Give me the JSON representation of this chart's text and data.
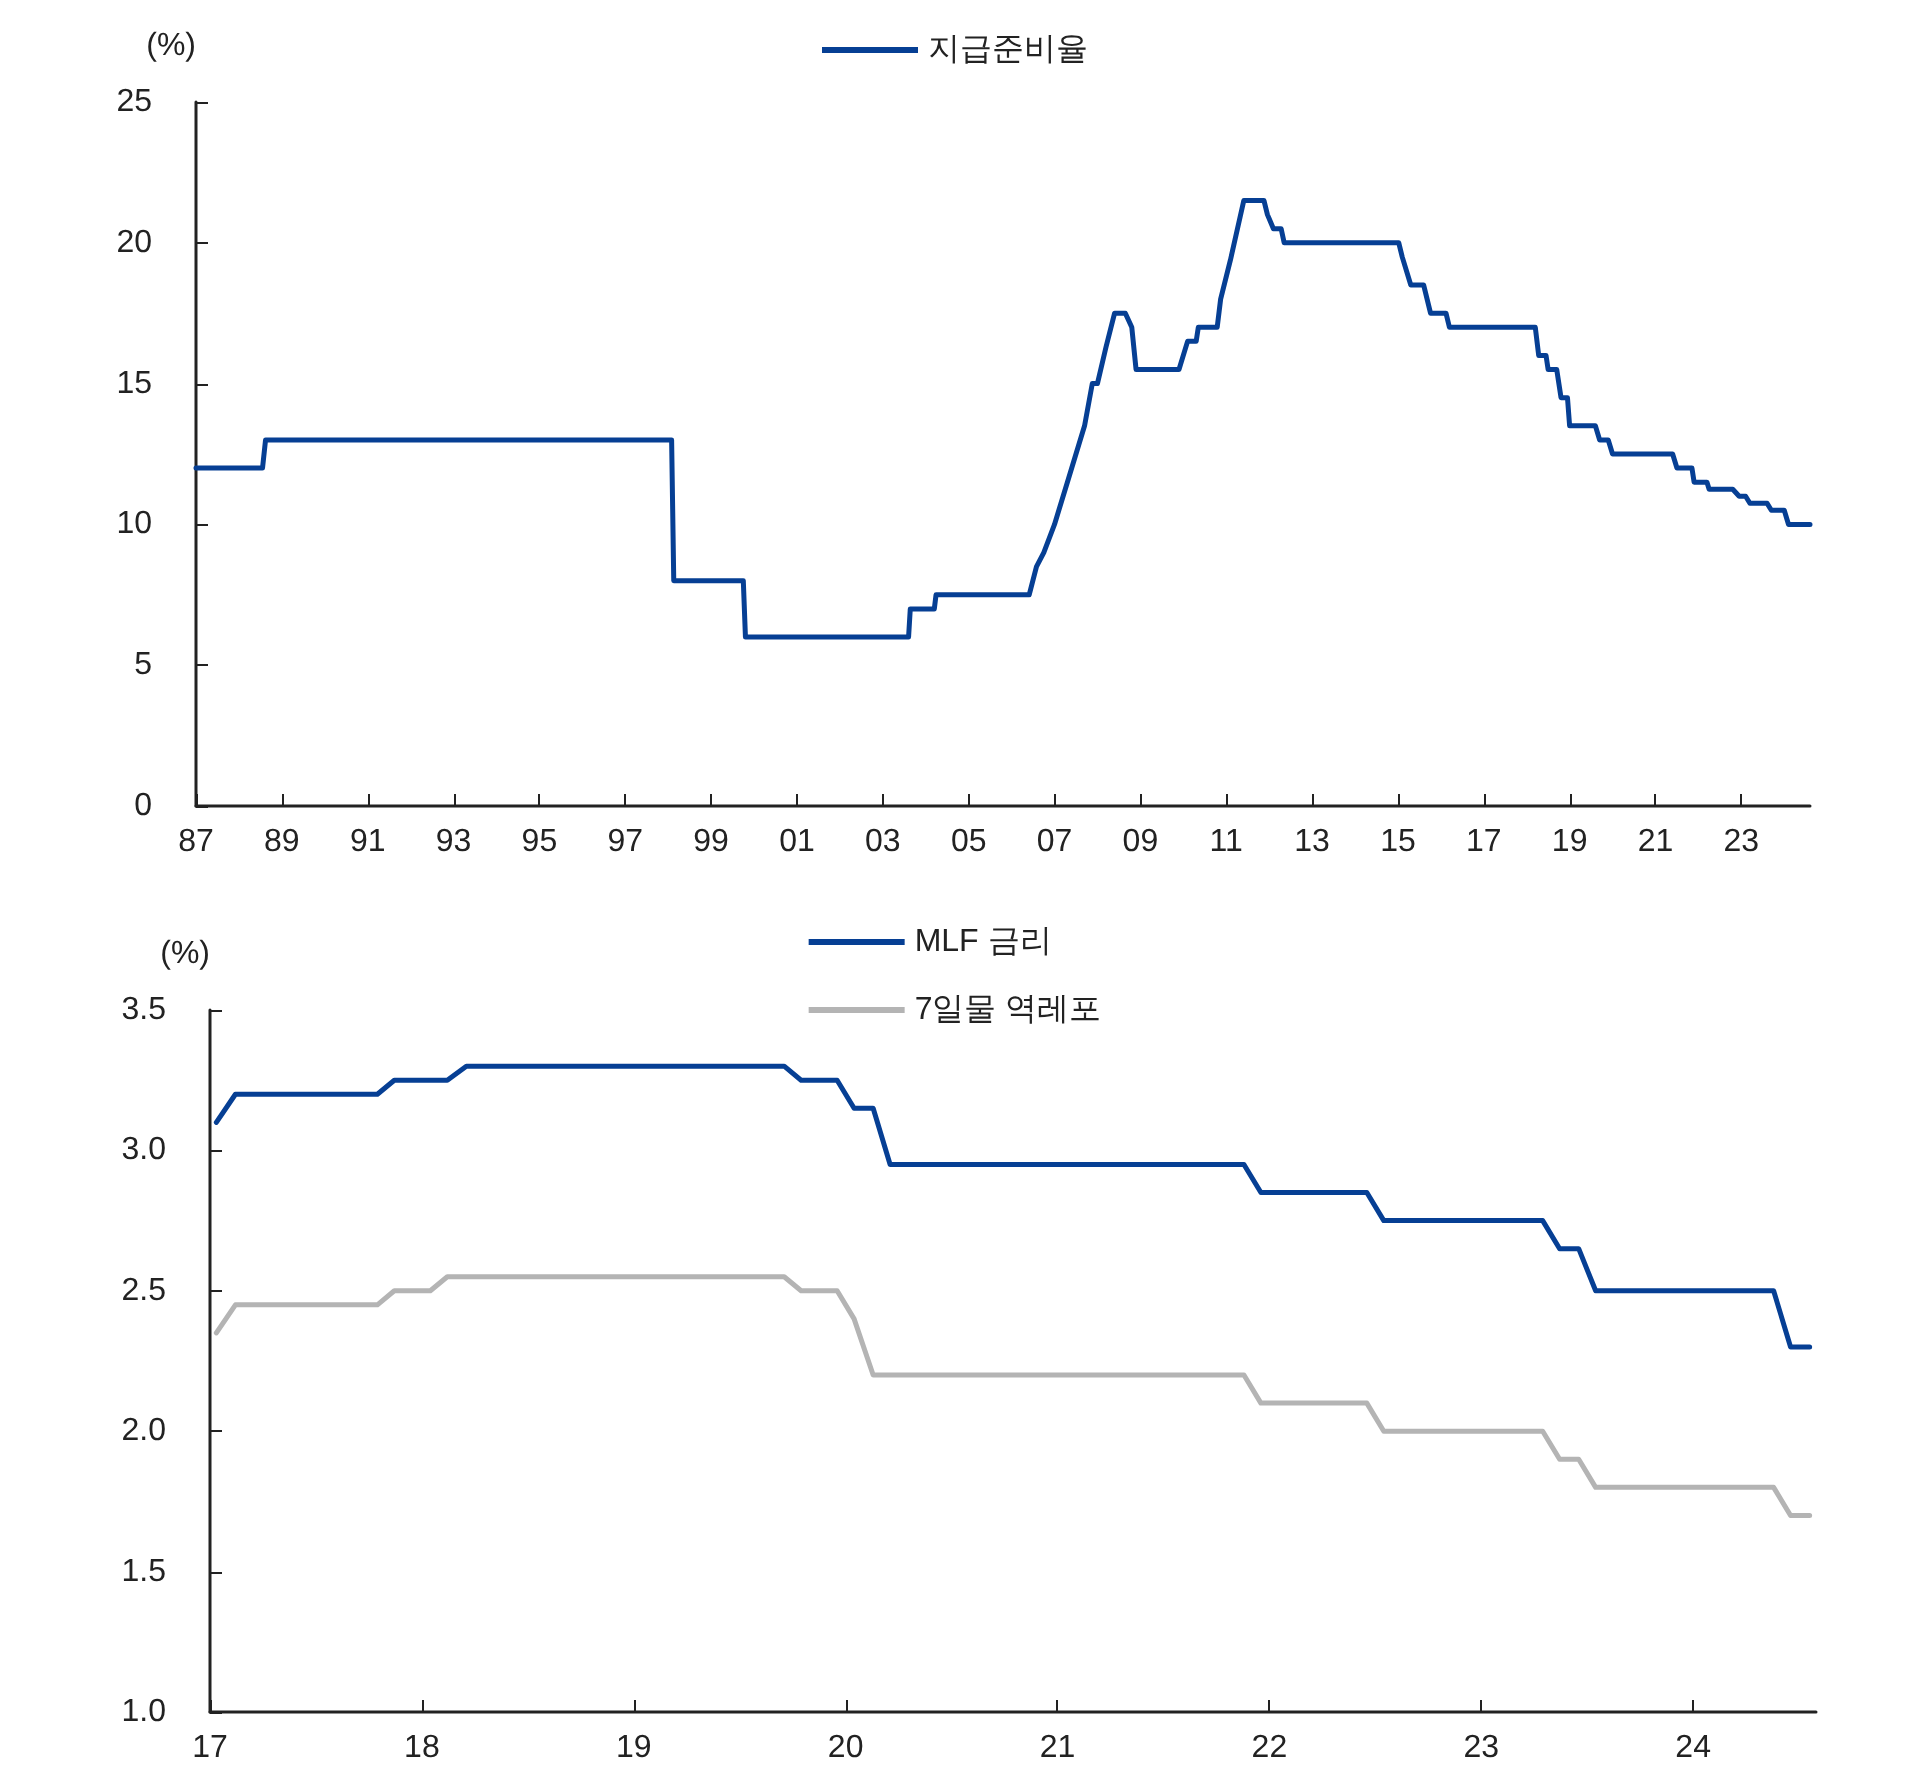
{
  "chart_data": [
    {
      "type": "line",
      "ylabel": "(%)",
      "legend": "top",
      "grid": false,
      "marker": "none",
      "line_style": "solid",
      "xlim": [
        1987,
        2024.6
      ],
      "xticks": [
        {
          "value": 1987,
          "label": "87"
        },
        {
          "value": 1989,
          "label": "89"
        },
        {
          "value": 1991,
          "label": "91"
        },
        {
          "value": 1993,
          "label": "93"
        },
        {
          "value": 1995,
          "label": "95"
        },
        {
          "value": 1997,
          "label": "97"
        },
        {
          "value": 1999,
          "label": "99"
        },
        {
          "value": 2001,
          "label": "01"
        },
        {
          "value": 2003,
          "label": "03"
        },
        {
          "value": 2005,
          "label": "05"
        },
        {
          "value": 2007,
          "label": "07"
        },
        {
          "value": 2009,
          "label": "09"
        },
        {
          "value": 2011,
          "label": "11"
        },
        {
          "value": 2013,
          "label": "13"
        },
        {
          "value": 2015,
          "label": "15"
        },
        {
          "value": 2017,
          "label": "17"
        },
        {
          "value": 2019,
          "label": "19"
        },
        {
          "value": 2021,
          "label": "21"
        },
        {
          "value": 2023,
          "label": "23"
        }
      ],
      "ylim": [
        0,
        25
      ],
      "yticks": [
        0,
        5,
        10,
        15,
        20,
        25
      ],
      "series": [
        {
          "name": "지급준비율",
          "color": "#063f94",
          "x": [
            1987,
            1988.55,
            1988.62,
            1998.08,
            1998.13,
            1999.75,
            1999.8,
            2003.6,
            2003.64,
            2004.2,
            2004.24,
            2006.41,
            2006.58,
            2006.6,
            2006.75,
            2007.0,
            2007.3,
            2007.7,
            2007.88,
            2008.0,
            2008.2,
            2008.4,
            2008.65,
            2008.8,
            2008.9,
            2009.9,
            2010.1,
            2010.3,
            2010.35,
            2010.79,
            2010.87,
            2011.1,
            2011.41,
            2011.88,
            2011.96,
            2012.1,
            2012.28,
            2012.35,
            2015.02,
            2015.1,
            2015.3,
            2015.6,
            2015.76,
            2016.12,
            2016.2,
            2018.2,
            2018.28,
            2018.45,
            2018.5,
            2018.7,
            2018.8,
            2018.95,
            2019.0,
            2019.6,
            2019.7,
            2019.9,
            2020.0,
            2021.4,
            2021.5,
            2021.85,
            2021.9,
            2022.2,
            2022.25,
            2022.8,
            2022.95,
            2023.1,
            2023.2,
            2023.6,
            2023.7,
            2024.0,
            2024.1,
            2024.6
          ],
          "values": [
            12,
            12,
            13,
            13,
            8,
            8,
            6,
            6,
            7,
            7,
            7.5,
            7.5,
            8.5,
            8.5,
            9,
            10,
            11.5,
            13.5,
            15,
            15,
            16.3,
            17.5,
            17.5,
            17,
            15.5,
            15.5,
            16.5,
            16.5,
            17,
            17,
            18,
            19.4,
            21.5,
            21.5,
            21,
            20.5,
            20.5,
            20,
            20,
            19.5,
            18.5,
            18.5,
            17.5,
            17.5,
            17,
            17,
            16,
            16,
            15.5,
            15.5,
            14.5,
            14.5,
            13.5,
            13.5,
            13,
            13,
            12.5,
            12.5,
            12,
            12,
            11.5,
            11.5,
            11.25,
            11.25,
            11,
            11,
            10.75,
            10.75,
            10.5,
            10.5,
            10,
            10
          ]
        }
      ]
    },
    {
      "type": "line",
      "ylabel": "(%)",
      "legend": "top",
      "grid": false,
      "marker": "none",
      "line_style": "solid",
      "xlim": [
        2017,
        2024.58
      ],
      "xticks": [
        {
          "value": 2017,
          "label": "17"
        },
        {
          "value": 2018,
          "label": "18"
        },
        {
          "value": 2019,
          "label": "19"
        },
        {
          "value": 2020,
          "label": "20"
        },
        {
          "value": 2021,
          "label": "21"
        },
        {
          "value": 2022,
          "label": "22"
        },
        {
          "value": 2023,
          "label": "23"
        },
        {
          "value": 2024,
          "label": "24"
        }
      ],
      "ylim": [
        1.0,
        3.5
      ],
      "yticks": [
        {
          "value": 1.0,
          "label": "1.0"
        },
        {
          "value": 1.5,
          "label": "1.5"
        },
        {
          "value": 2.0,
          "label": "2.0"
        },
        {
          "value": 2.5,
          "label": "2.5"
        },
        {
          "value": 3.0,
          "label": "3.0"
        },
        {
          "value": 3.5,
          "label": "3.5"
        }
      ],
      "series": [
        {
          "name": "MLF 금리",
          "color": "#063f94",
          "x": [
            2017.03,
            2017.12,
            2017.79,
            2017.87,
            2018.12,
            2018.21,
            2019.71,
            2019.79,
            2019.96,
            2020.04,
            2020.13,
            2020.21,
            2021.88,
            2021.96,
            2022.46,
            2022.54,
            2023.29,
            2023.37,
            2023.46,
            2023.54,
            2024.38,
            2024.46,
            2024.55
          ],
          "values": [
            3.1,
            3.2,
            3.2,
            3.25,
            3.25,
            3.3,
            3.3,
            3.25,
            3.25,
            3.15,
            3.15,
            2.95,
            2.95,
            2.85,
            2.85,
            2.75,
            2.75,
            2.65,
            2.65,
            2.5,
            2.5,
            2.3,
            2.3
          ]
        },
        {
          "name": "7일물 역레포",
          "color": "#b4b4b4",
          "x": [
            2017.03,
            2017.12,
            2017.79,
            2017.87,
            2018.04,
            2018.12,
            2019.71,
            2019.79,
            2019.96,
            2020.04,
            2020.13,
            2021.88,
            2021.96,
            2022.46,
            2022.54,
            2023.29,
            2023.37,
            2023.46,
            2023.54,
            2024.38,
            2024.46,
            2024.55
          ],
          "values": [
            2.35,
            2.45,
            2.45,
            2.5,
            2.5,
            2.55,
            2.55,
            2.5,
            2.5,
            2.4,
            2.2,
            2.2,
            2.1,
            2.1,
            2.0,
            2.0,
            1.9,
            1.9,
            1.8,
            1.8,
            1.7,
            1.7
          ]
        }
      ]
    }
  ]
}
